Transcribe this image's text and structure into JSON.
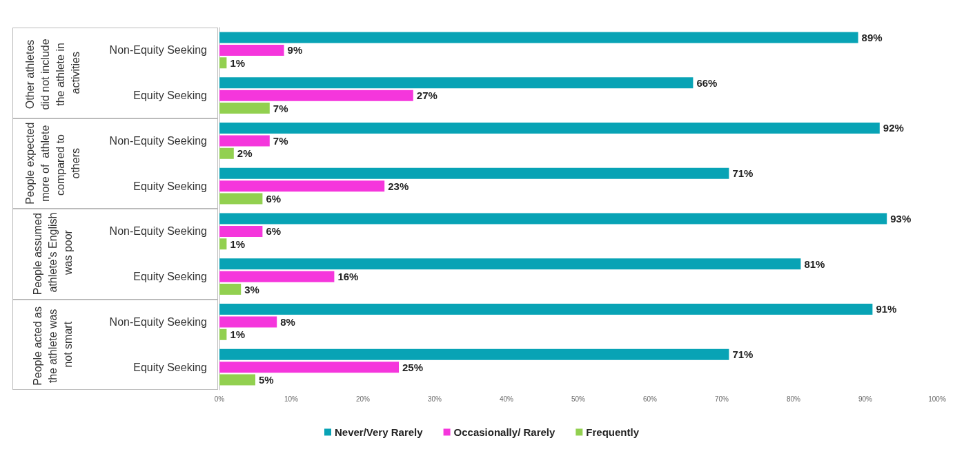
{
  "chart_data": {
    "type": "bar",
    "orientation": "horizontal",
    "categories": [
      "Non-Equity Seeking",
      "Equity Seeking",
      "Non-Equity Seeking",
      "Equity Seeking",
      "Non-Equity Seeking",
      "Equity Seeking",
      "Non-Equity Seeking",
      "Equity Seeking"
    ],
    "annotations": [
      "Other athletes did not include the athlete in activities",
      "People expected more of  athlete compared to others",
      "People assumed athlete's English was poor",
      "People acted as the athlete was not smart"
    ],
    "series": [
      {
        "name": "Never/Very Rarely",
        "color": "#08a3b5",
        "values": [
          89,
          66,
          92,
          71,
          93,
          81,
          91,
          71
        ],
        "value_labels": [
          "89%",
          "66%",
          "92%",
          "71%",
          "93%",
          "81%",
          "91%",
          "71%"
        ]
      },
      {
        "name": "Occasionally/ Rarely",
        "color": "#f536dc",
        "values": [
          9,
          27,
          7,
          23,
          6,
          16,
          8,
          25
        ],
        "value_labels": [
          "9%",
          "27%",
          "7%",
          "23%",
          "6%",
          "16%",
          "8%",
          "25%"
        ]
      },
      {
        "name": "Frequently",
        "color": "#92d050",
        "values": [
          1,
          7,
          2,
          6,
          1,
          3,
          1,
          5
        ],
        "value_labels": [
          "1%",
          "7%",
          "2%",
          "6%",
          "1%",
          "3%",
          "1%",
          "5%"
        ]
      }
    ],
    "xlim": [
      0,
      100
    ],
    "xticks": [
      {
        "value": 0,
        "label": "0%"
      },
      {
        "value": 10,
        "label": "10%"
      },
      {
        "value": 20,
        "label": "20%"
      },
      {
        "value": 30,
        "label": "30%"
      },
      {
        "value": 40,
        "label": "40%"
      },
      {
        "value": 50,
        "label": "50%"
      },
      {
        "value": 60,
        "label": "60%"
      },
      {
        "value": 70,
        "label": "70%"
      },
      {
        "value": 80,
        "label": "80%"
      },
      {
        "value": 90,
        "label": "90%"
      },
      {
        "value": 100,
        "label": "100%"
      }
    ],
    "grid": false,
    "legend": "bottom"
  }
}
